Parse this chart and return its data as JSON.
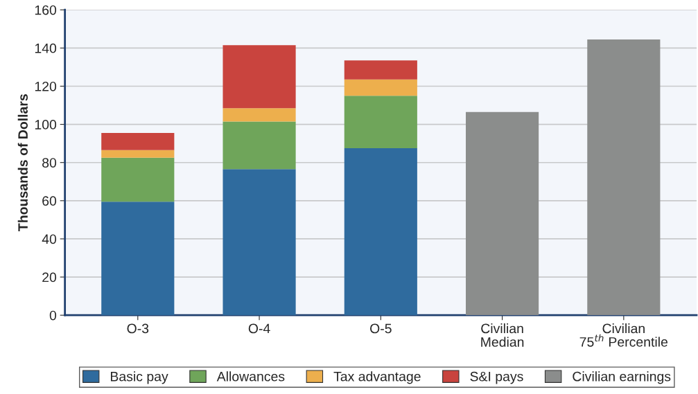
{
  "chart_data": {
    "type": "bar",
    "stacked": true,
    "ylabel": "Thousands of Dollars",
    "categories": [
      "O-3",
      "O-4",
      "O-5",
      "Civilian\nMedian",
      "Civilian\n75$^{th}$ Percentile"
    ],
    "series": [
      {
        "name": "Basic pay",
        "color": "#2f6b9e",
        "values": [
          59.5,
          76.5,
          87.5,
          null,
          null
        ]
      },
      {
        "name": "Allowances",
        "color": "#6fa55a",
        "values": [
          23,
          25,
          27.5,
          null,
          null
        ]
      },
      {
        "name": "Tax advantage",
        "color": "#edaf4d",
        "values": [
          4,
          7,
          8.5,
          null,
          null
        ]
      },
      {
        "name": "S&I pays",
        "color": "#c9443e",
        "values": [
          9,
          33,
          10,
          null,
          null
        ]
      },
      {
        "name": "Civilian earnings",
        "color": "#8b8d8c",
        "values": [
          null,
          null,
          null,
          106.5,
          144.5
        ]
      }
    ],
    "ylim": [
      0,
      160
    ],
    "yticks": [
      0,
      20,
      40,
      60,
      80,
      100,
      120,
      140,
      160
    ],
    "grid": "y",
    "legend": "bottom"
  }
}
